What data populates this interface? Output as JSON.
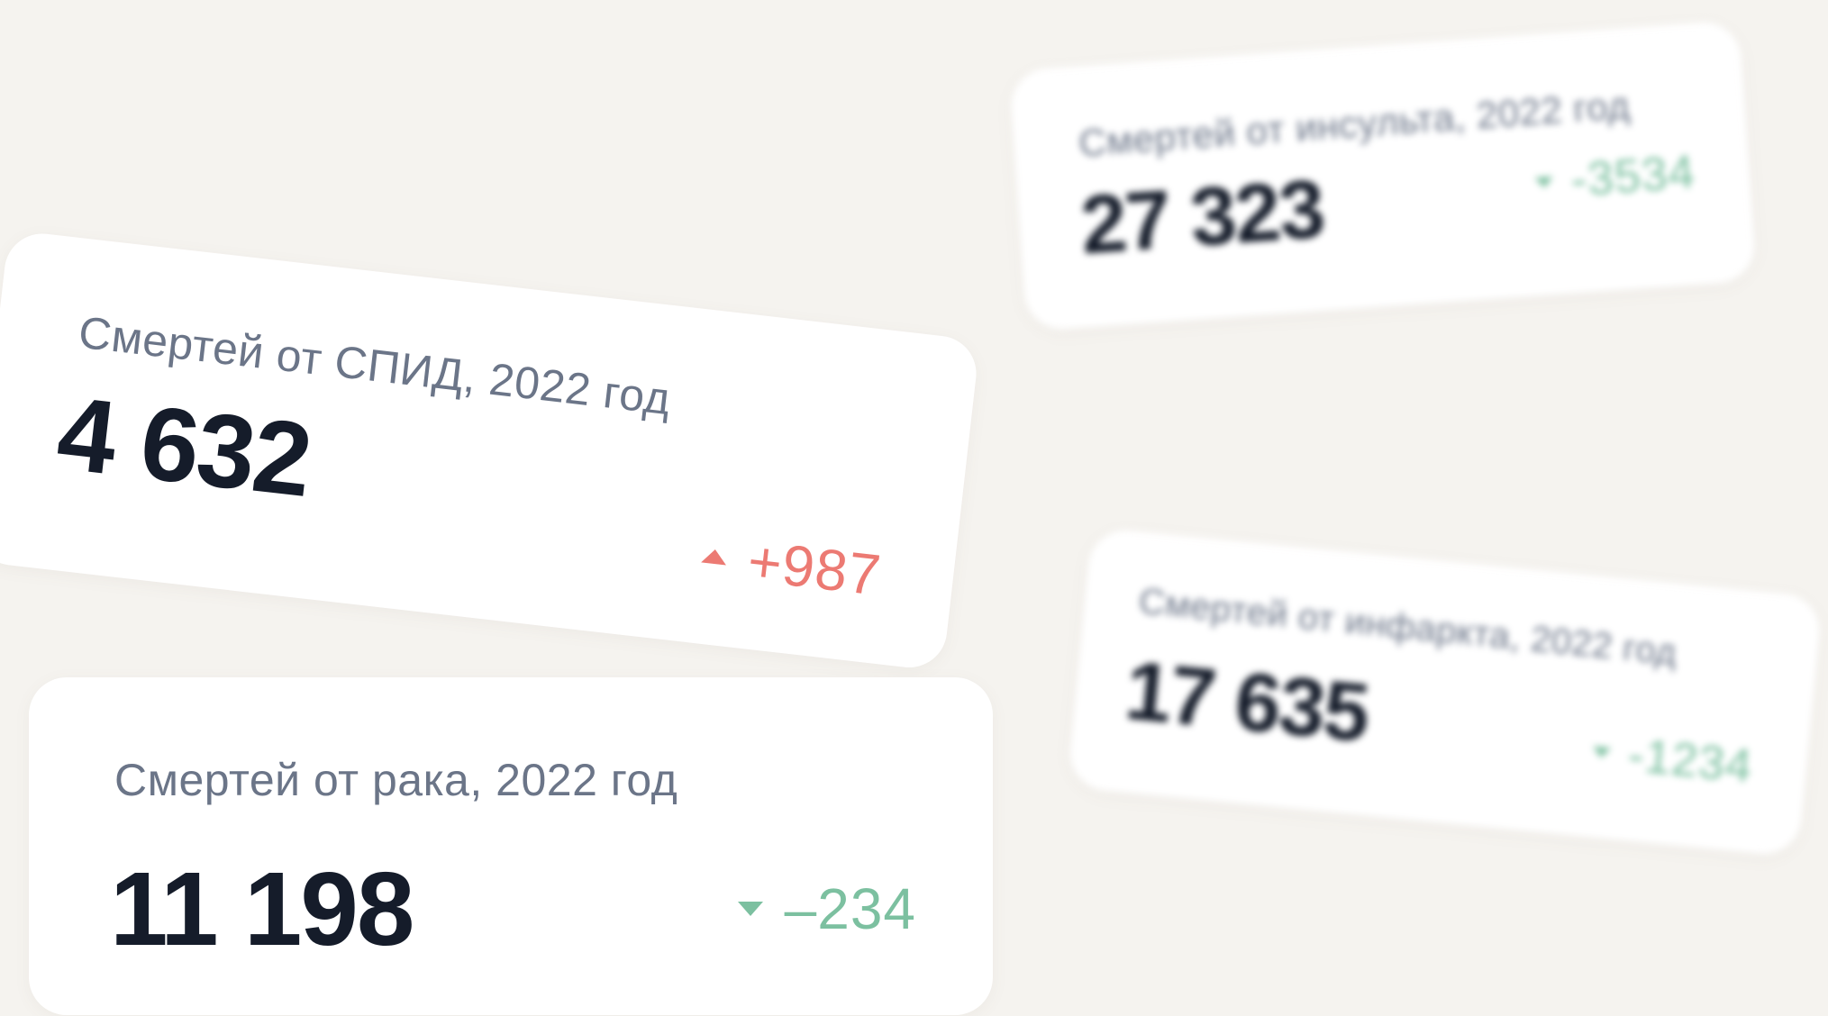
{
  "colors": {
    "background": "#f5f3ef",
    "card": "#ffffff",
    "title": "#6b7588",
    "value": "#151c2a",
    "increase": "#ec7a73",
    "decrease": "#7cc0a0"
  },
  "cards": {
    "aids": {
      "title": "Смертей от СПИД, 2022 год",
      "value": "4 632",
      "delta": "+987",
      "trend": "up",
      "trend_icon": "triangle-up-icon"
    },
    "cancer": {
      "title": "Смертей от рака, 2022 год",
      "value": "11 198",
      "delta": "–234",
      "trend": "down",
      "trend_icon": "triangle-down-icon"
    },
    "stroke": {
      "title": "Смертей от инсульта, 2022 год",
      "value": "27 323",
      "delta": "-3534",
      "trend": "down",
      "trend_icon": "triangle-down-icon"
    },
    "infarct": {
      "title": "Смертей от инфаркта, 2022 год",
      "value": "17 635",
      "delta": "-1234",
      "trend": "down",
      "trend_icon": "triangle-down-icon"
    }
  }
}
